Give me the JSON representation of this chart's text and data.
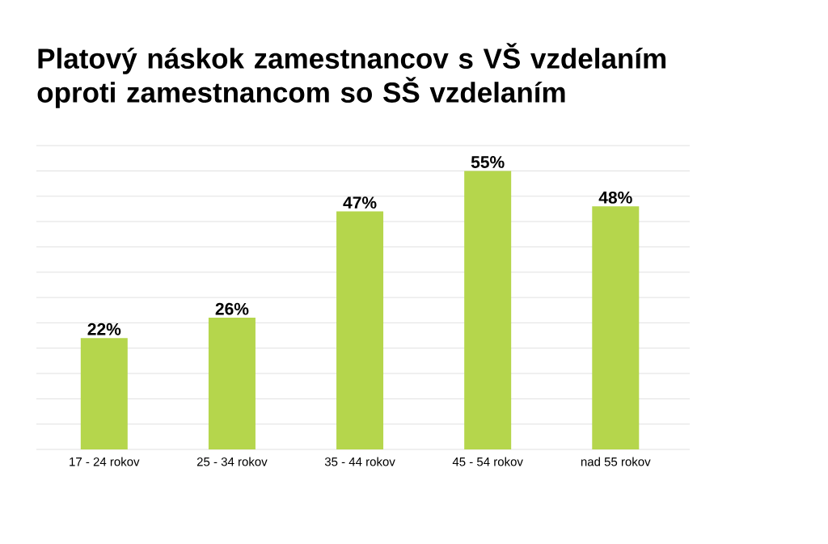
{
  "chart_data": {
    "type": "bar",
    "title": "Platový náskok zamestnancov s VŠ vzdelaním oproti zamestnancom so SŠ vzdelaním",
    "categories": [
      "17 - 24 rokov",
      "25 - 34 rokov",
      "35 - 44 rokov",
      "45 - 54 rokov",
      "nad 55 rokov"
    ],
    "values": [
      22,
      26,
      47,
      55,
      48
    ],
    "value_labels": [
      "22%",
      "26%",
      "47%",
      "55%",
      "48%"
    ],
    "color": "#b5d64c",
    "grid": "y",
    "tick_labels": "x"
  }
}
